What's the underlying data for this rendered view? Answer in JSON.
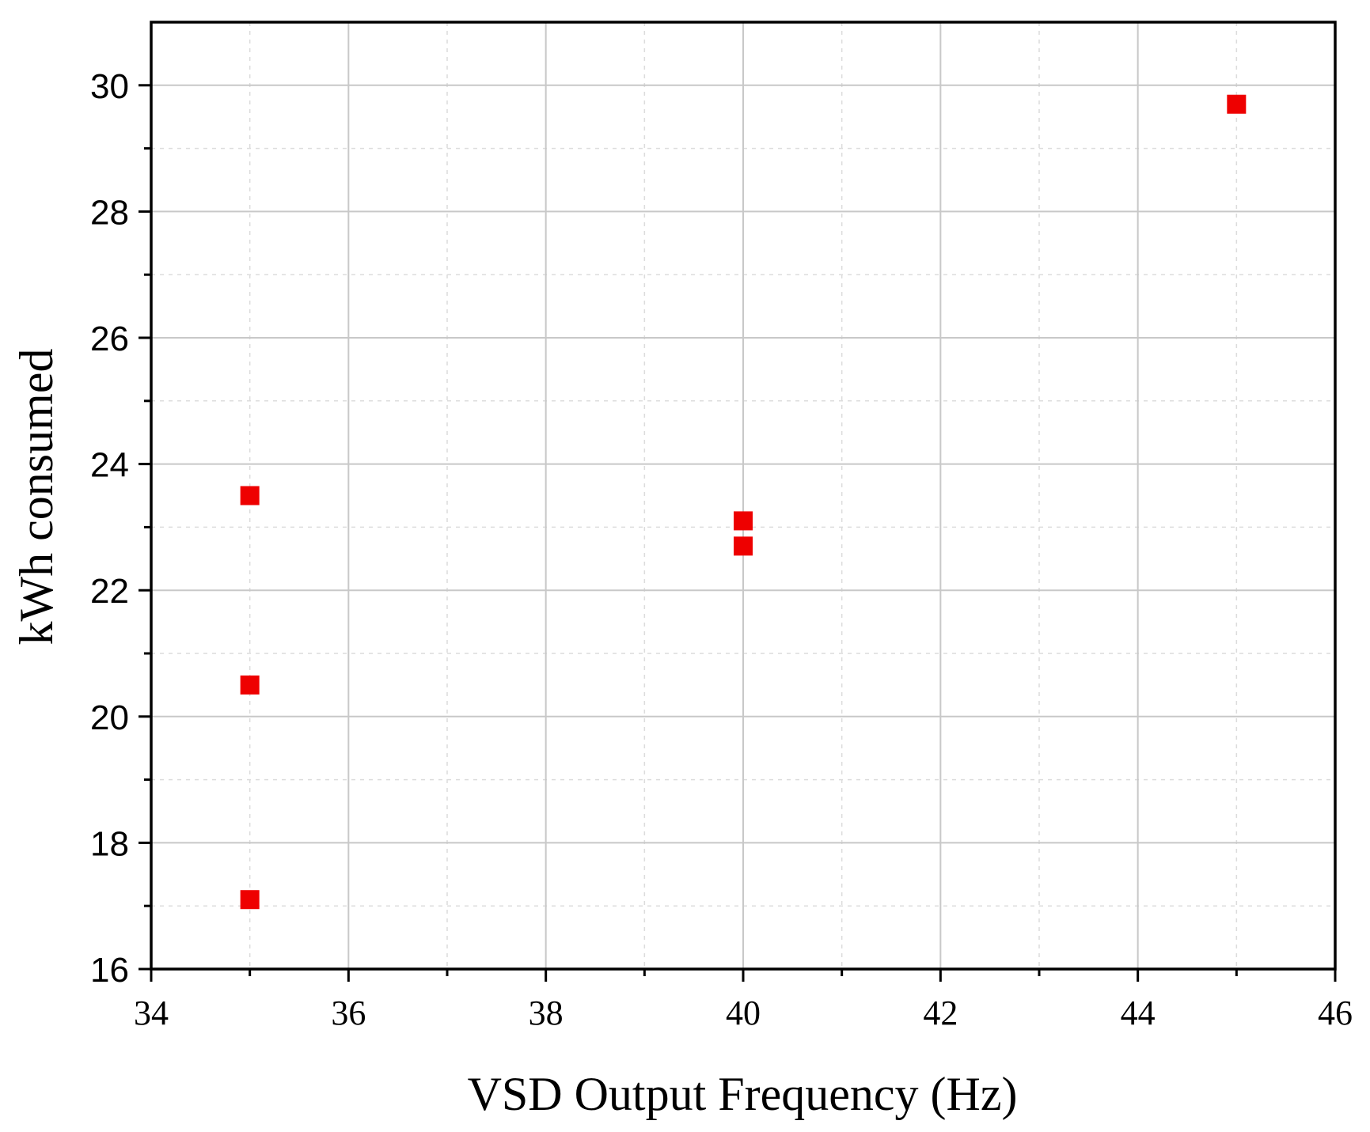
{
  "chart_data": {
    "type": "scatter",
    "xlabel": "VSD Output Frequency (Hz)",
    "ylabel": "kWh consumed",
    "xlim": [
      34,
      46
    ],
    "ylim": [
      16,
      31
    ],
    "xticks": [
      34,
      36,
      38,
      40,
      42,
      44,
      46
    ],
    "yticks": [
      16,
      18,
      20,
      22,
      24,
      26,
      28,
      30
    ],
    "grid": true,
    "series": [
      {
        "marker": "square",
        "color": "#ee0000",
        "points": [
          {
            "x": 35,
            "y": 23.5
          },
          {
            "x": 35,
            "y": 20.5
          },
          {
            "x": 35,
            "y": 17.1
          },
          {
            "x": 40,
            "y": 23.1
          },
          {
            "x": 40,
            "y": 22.7
          },
          {
            "x": 45,
            "y": 29.7
          }
        ]
      }
    ]
  }
}
